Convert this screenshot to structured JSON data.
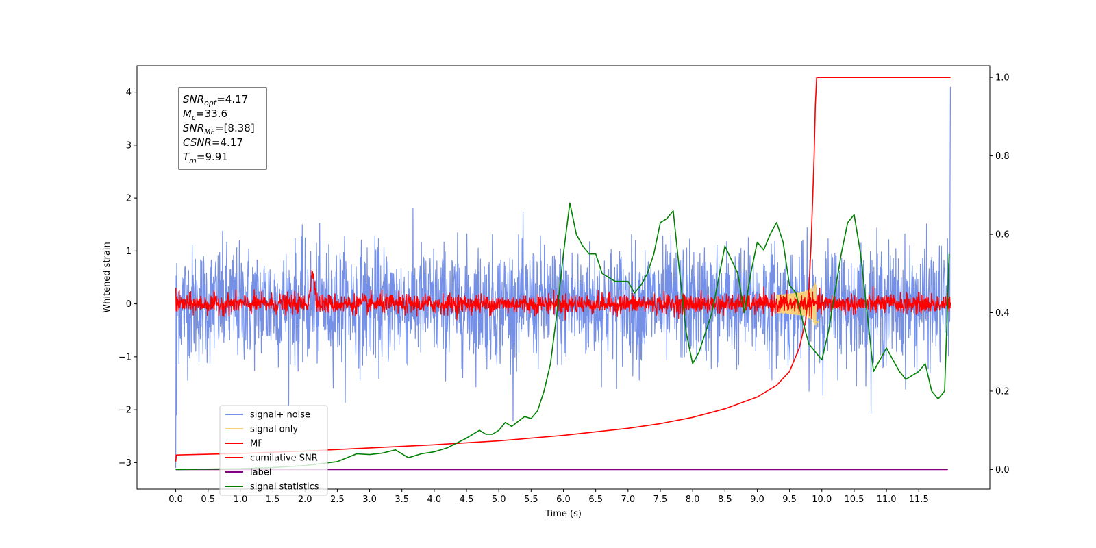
{
  "chart_data": {
    "type": "line",
    "xlabel": "Time (s)",
    "ylabel": "Whitened strain",
    "xlim": [
      -0.6,
      12.6
    ],
    "ylim": [
      -3.5,
      4.5
    ],
    "y2lim": [
      -0.05,
      1.03
    ],
    "x_ticks": [
      0.0,
      0.5,
      1.0,
      1.5,
      2.0,
      2.5,
      3.0,
      3.5,
      4.0,
      4.5,
      5.0,
      5.5,
      6.0,
      6.5,
      7.0,
      7.5,
      8.0,
      8.5,
      9.0,
      9.5,
      10.0,
      10.5,
      11.0,
      11.5
    ],
    "x_tick_labels": [
      "0.0",
      "0.5",
      "1.0",
      "1.5",
      "2.0",
      "2.5",
      "3.0",
      "3.5",
      "4.0",
      "4.5",
      "5.0",
      "5.5",
      "6.0",
      "6.5",
      "7.0",
      "7.5",
      "8.0",
      "8.5",
      "9.0",
      "9.5",
      "10.0",
      "10.5",
      "11.0",
      "11.5"
    ],
    "y_ticks": [
      -3,
      -2,
      -1,
      0,
      1,
      2,
      3,
      4
    ],
    "y_tick_labels": [
      "−3",
      "−2",
      "−1",
      "0",
      "1",
      "2",
      "3",
      "4"
    ],
    "y2_ticks": [
      0.0,
      0.2,
      0.4,
      0.6,
      0.8,
      1.0
    ],
    "y2_tick_labels": [
      "0.0",
      "0.2",
      "0.4",
      "0.6",
      "0.8",
      "1.0"
    ],
    "grid": false,
    "legend_position": "lower-left",
    "info_box": [
      {
        "label": "SNR",
        "sub": "opt",
        "value": "=4.17"
      },
      {
        "label": "M",
        "sub": "c",
        "value": "=33.6"
      },
      {
        "label": "SNR",
        "sub": "MF",
        "value": "=[8.38]"
      },
      {
        "label": "CSNR",
        "sub": "",
        "value": "=4.17"
      },
      {
        "label": "T",
        "sub": "m",
        "value": "=9.91"
      }
    ],
    "series": [
      {
        "name": "signal+ noise",
        "color": "#7590e8",
        "axis": "left",
        "kind": "noise",
        "amplitude": 1.1,
        "x_start": 0.0,
        "x_end": 11.99
      },
      {
        "name": "signal only",
        "color": "#f5cf7a",
        "axis": "left",
        "kind": "chirp",
        "merger": 9.91,
        "peak": 0.4
      },
      {
        "name": "MF",
        "color": "#ff0000",
        "axis": "left",
        "kind": "noise",
        "amplitude": 0.18,
        "x_start": 0.0,
        "x_end": 11.99
      },
      {
        "name": "cumilative SNR",
        "color": "#ff0000",
        "axis": "right",
        "x": [
          0.0,
          0.01,
          1.0,
          2.0,
          3.0,
          4.0,
          5.0,
          6.0,
          7.0,
          7.5,
          8.0,
          8.5,
          9.0,
          9.3,
          9.5,
          9.65,
          9.75,
          9.8,
          9.83,
          9.86,
          9.88,
          9.9,
          9.92,
          11.99
        ],
        "y": [
          0.02,
          0.037,
          0.041,
          0.047,
          0.055,
          0.063,
          0.073,
          0.087,
          0.105,
          0.117,
          0.133,
          0.155,
          0.185,
          0.215,
          0.25,
          0.31,
          0.38,
          0.46,
          0.56,
          0.7,
          0.8,
          0.93,
          1.0,
          1.0
        ]
      },
      {
        "name": "label",
        "color": "#800080",
        "axis": "right",
        "x": [
          0.0,
          11.95
        ],
        "y": [
          0.0,
          0.0
        ]
      },
      {
        "name": "signal statistics",
        "color": "#008000",
        "axis": "right",
        "x": [
          0.0,
          0.5,
          1.0,
          1.5,
          2.0,
          2.5,
          2.8,
          3.0,
          3.2,
          3.4,
          3.6,
          3.8,
          4.0,
          4.2,
          4.5,
          4.7,
          4.8,
          4.9,
          5.0,
          5.1,
          5.2,
          5.4,
          5.5,
          5.6,
          5.7,
          5.8,
          5.9,
          6.0,
          6.1,
          6.2,
          6.3,
          6.4,
          6.5,
          6.6,
          6.8,
          7.0,
          7.1,
          7.2,
          7.3,
          7.4,
          7.5,
          7.6,
          7.7,
          7.8,
          7.9,
          8.0,
          8.1,
          8.3,
          8.5,
          8.7,
          8.8,
          8.9,
          9.0,
          9.1,
          9.2,
          9.3,
          9.4,
          9.5,
          9.6,
          9.7,
          9.8,
          9.9,
          10.0,
          10.1,
          10.2,
          10.3,
          10.4,
          10.5,
          10.6,
          10.7,
          10.8,
          10.9,
          11.0,
          11.1,
          11.2,
          11.3,
          11.4,
          11.5,
          11.6,
          11.7,
          11.8,
          11.9,
          11.97
        ],
        "y": [
          0.0,
          0.001,
          0.002,
          0.005,
          0.01,
          0.02,
          0.04,
          0.038,
          0.042,
          0.05,
          0.03,
          0.04,
          0.045,
          0.055,
          0.08,
          0.1,
          0.09,
          0.09,
          0.1,
          0.12,
          0.11,
          0.135,
          0.13,
          0.15,
          0.2,
          0.27,
          0.4,
          0.55,
          0.68,
          0.6,
          0.57,
          0.55,
          0.55,
          0.5,
          0.48,
          0.48,
          0.45,
          0.47,
          0.5,
          0.55,
          0.63,
          0.64,
          0.66,
          0.5,
          0.35,
          0.27,
          0.3,
          0.4,
          0.57,
          0.5,
          0.4,
          0.5,
          0.58,
          0.56,
          0.6,
          0.63,
          0.58,
          0.47,
          0.45,
          0.38,
          0.32,
          0.3,
          0.28,
          0.35,
          0.45,
          0.55,
          0.63,
          0.65,
          0.55,
          0.4,
          0.25,
          0.28,
          0.31,
          0.28,
          0.25,
          0.23,
          0.24,
          0.25,
          0.27,
          0.2,
          0.18,
          0.2,
          0.55
        ]
      }
    ]
  }
}
